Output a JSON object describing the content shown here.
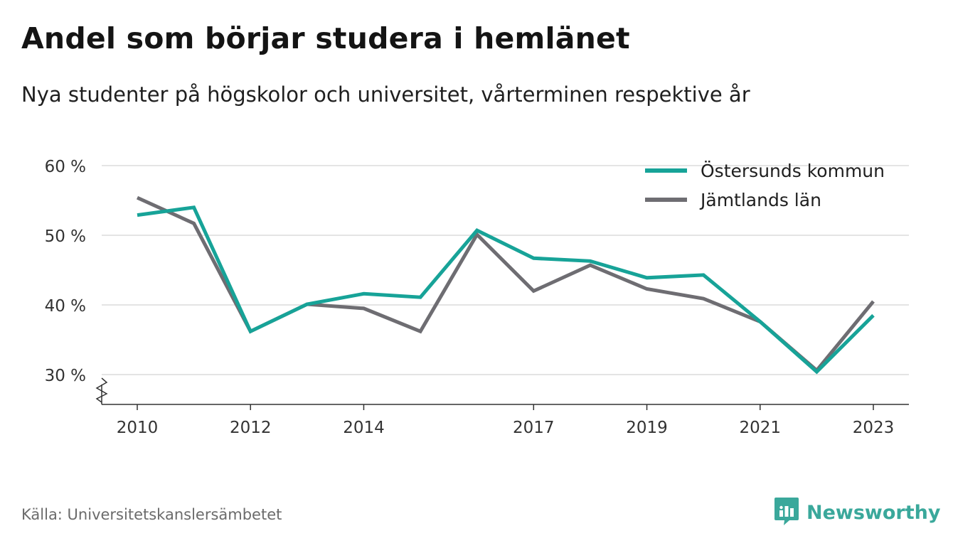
{
  "title": "Andel som börjar studera i hemlänet",
  "subtitle": "Nya studenter på högskolor och universitet, vårterminen respektive år",
  "source": "Källa: Universitetskanslersämbetet",
  "brand": {
    "name": "Newsworthy",
    "icon": "newsworthy-logo-icon",
    "color": "#3aa89b"
  },
  "chart_data": {
    "type": "line",
    "x": [
      2010,
      2011,
      2012,
      2013,
      2014,
      2015,
      2016,
      2017,
      2018,
      2019,
      2020,
      2021,
      2022,
      2023
    ],
    "x_tick_labels": [
      "2010",
      "2012",
      "2014",
      "2017",
      "2019",
      "2021",
      "2023"
    ],
    "x_tick_values": [
      2010,
      2012,
      2014,
      2017,
      2019,
      2021,
      2023
    ],
    "y_tick_labels": [
      "30 %",
      "40 %",
      "50 %",
      "60 %"
    ],
    "y_tick_values": [
      30,
      40,
      50,
      60
    ],
    "ylim": [
      26,
      60
    ],
    "y_axis_break": true,
    "grid": true,
    "legend_position": "top-right",
    "series": [
      {
        "name": "Östersunds kommun",
        "color": "#17a398",
        "values": [
          52.9,
          54.0,
          36.2,
          40.1,
          41.6,
          41.1,
          50.7,
          46.7,
          46.3,
          43.9,
          44.3,
          37.6,
          30.4,
          38.5
        ]
      },
      {
        "name": "Jämtlands län",
        "color": "#6e6d72",
        "values": [
          55.4,
          51.7,
          36.2,
          40.1,
          39.5,
          36.2,
          50.1,
          42.0,
          45.7,
          42.3,
          40.9,
          37.6,
          30.6,
          40.5
        ]
      }
    ]
  }
}
